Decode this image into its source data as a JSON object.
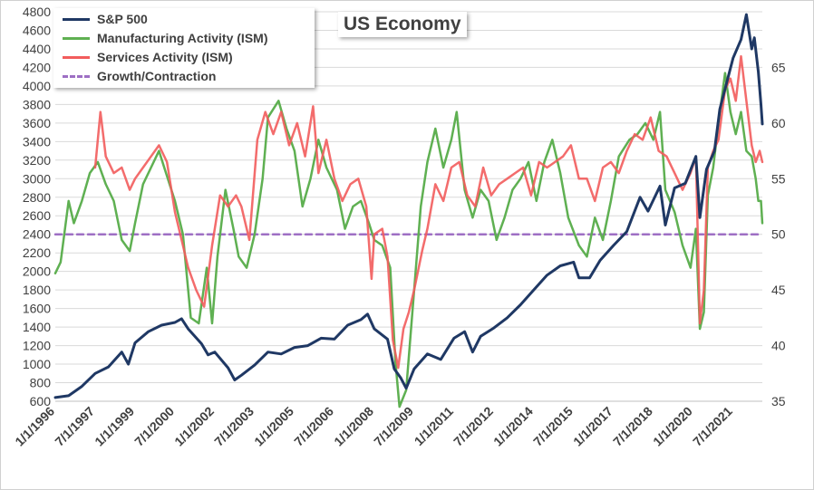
{
  "chart_data": {
    "type": "line",
    "title": "US Economy",
    "xlabel": "",
    "ylabel": "",
    "y_left_range": [
      600,
      4800
    ],
    "y_left_ticks": [
      600,
      800,
      1000,
      1200,
      1400,
      1600,
      1800,
      2000,
      2200,
      2400,
      2600,
      2800,
      3000,
      3200,
      3400,
      3600,
      3800,
      4000,
      4200,
      4400,
      4600,
      4800
    ],
    "y_right_range": [
      35,
      70
    ],
    "y_right_ticks": [
      35,
      40,
      45,
      50,
      55,
      60,
      65
    ],
    "x_range": [
      1996.0,
      2022.6
    ],
    "x_tick_labels": [
      {
        "label": "1/1/1996",
        "t": 1996.0
      },
      {
        "label": "7/1/1997",
        "t": 1997.5
      },
      {
        "label": "1/1/1999",
        "t": 1999.0
      },
      {
        "label": "7/1/2000",
        "t": 2000.5
      },
      {
        "label": "1/1/2002",
        "t": 2002.0
      },
      {
        "label": "7/1/2003",
        "t": 2003.5
      },
      {
        "label": "1/1/2005",
        "t": 2005.0
      },
      {
        "label": "7/1/2006",
        "t": 2006.5
      },
      {
        "label": "1/1/2008",
        "t": 2008.0
      },
      {
        "label": "7/1/2009",
        "t": 2009.5
      },
      {
        "label": "1/1/2011",
        "t": 2011.0
      },
      {
        "label": "7/1/2012",
        "t": 2012.5
      },
      {
        "label": "1/1/2014",
        "t": 2014.0
      },
      {
        "label": "7/1/2015",
        "t": 2015.5
      },
      {
        "label": "1/1/2017",
        "t": 2017.0
      },
      {
        "label": "7/1/2018",
        "t": 2018.5
      },
      {
        "label": "1/1/2020",
        "t": 2020.0
      },
      {
        "label": "7/1/2021",
        "t": 2021.5
      }
    ],
    "legend_position": "top-left",
    "grid": "horizontal",
    "series": [
      {
        "name": "S&P 500",
        "axis": "left",
        "color": "#1f3864",
        "points": [
          [
            1996.0,
            640
          ],
          [
            1996.5,
            660
          ],
          [
            1997.0,
            760
          ],
          [
            1997.5,
            900
          ],
          [
            1998.0,
            970
          ],
          [
            1998.5,
            1130
          ],
          [
            1998.75,
            1000
          ],
          [
            1999.0,
            1230
          ],
          [
            1999.5,
            1350
          ],
          [
            2000.0,
            1420
          ],
          [
            2000.5,
            1450
          ],
          [
            2000.75,
            1490
          ],
          [
            2001.0,
            1380
          ],
          [
            2001.5,
            1220
          ],
          [
            2001.75,
            1100
          ],
          [
            2002.0,
            1130
          ],
          [
            2002.5,
            960
          ],
          [
            2002.75,
            830
          ],
          [
            2003.0,
            880
          ],
          [
            2003.5,
            990
          ],
          [
            2004.0,
            1130
          ],
          [
            2004.5,
            1110
          ],
          [
            2005.0,
            1180
          ],
          [
            2005.5,
            1200
          ],
          [
            2006.0,
            1280
          ],
          [
            2006.5,
            1270
          ],
          [
            2007.0,
            1420
          ],
          [
            2007.5,
            1480
          ],
          [
            2007.75,
            1540
          ],
          [
            2008.0,
            1380
          ],
          [
            2008.5,
            1270
          ],
          [
            2008.75,
            950
          ],
          [
            2009.0,
            850
          ],
          [
            2009.2,
            740
          ],
          [
            2009.5,
            950
          ],
          [
            2010.0,
            1110
          ],
          [
            2010.5,
            1050
          ],
          [
            2011.0,
            1280
          ],
          [
            2011.4,
            1350
          ],
          [
            2011.7,
            1130
          ],
          [
            2012.0,
            1300
          ],
          [
            2012.5,
            1390
          ],
          [
            2013.0,
            1500
          ],
          [
            2013.5,
            1640
          ],
          [
            2014.0,
            1800
          ],
          [
            2014.5,
            1960
          ],
          [
            2015.0,
            2060
          ],
          [
            2015.5,
            2100
          ],
          [
            2015.7,
            1930
          ],
          [
            2016.1,
            1930
          ],
          [
            2016.5,
            2120
          ],
          [
            2017.0,
            2280
          ],
          [
            2017.5,
            2430
          ],
          [
            2018.0,
            2800
          ],
          [
            2018.3,
            2650
          ],
          [
            2018.75,
            2920
          ],
          [
            2018.95,
            2500
          ],
          [
            2019.3,
            2900
          ],
          [
            2019.7,
            2950
          ],
          [
            2020.1,
            3240
          ],
          [
            2020.25,
            2580
          ],
          [
            2020.5,
            3100
          ],
          [
            2020.8,
            3300
          ],
          [
            2021.0,
            3750
          ],
          [
            2021.5,
            4300
          ],
          [
            2021.8,
            4500
          ],
          [
            2022.0,
            4770
          ],
          [
            2022.2,
            4400
          ],
          [
            2022.3,
            4520
          ],
          [
            2022.45,
            4150
          ],
          [
            2022.55,
            3800
          ],
          [
            2022.6,
            3590
          ]
        ]
      },
      {
        "name": "Manufacturing Activity (ISM)",
        "axis": "right",
        "color": "#5fb052",
        "points": [
          [
            1996.0,
            46.5
          ],
          [
            1996.2,
            47.5
          ],
          [
            1996.5,
            53
          ],
          [
            1996.7,
            51
          ],
          [
            1997.0,
            53
          ],
          [
            1997.3,
            55.5
          ],
          [
            1997.6,
            56.5
          ],
          [
            1997.9,
            54.5
          ],
          [
            1998.2,
            53
          ],
          [
            1998.5,
            49.5
          ],
          [
            1998.8,
            48.5
          ],
          [
            1999.0,
            51
          ],
          [
            1999.3,
            54.5
          ],
          [
            1999.6,
            56
          ],
          [
            1999.9,
            57.5
          ],
          [
            2000.1,
            56
          ],
          [
            2000.5,
            53
          ],
          [
            2000.8,
            50
          ],
          [
            2001.1,
            42.5
          ],
          [
            2001.4,
            42
          ],
          [
            2001.7,
            47
          ],
          [
            2001.9,
            42
          ],
          [
            2002.1,
            48
          ],
          [
            2002.4,
            54
          ],
          [
            2002.7,
            50.5
          ],
          [
            2002.9,
            48
          ],
          [
            2003.2,
            47
          ],
          [
            2003.5,
            50
          ],
          [
            2003.8,
            55
          ],
          [
            2004.0,
            60.5
          ],
          [
            2004.4,
            62
          ],
          [
            2004.7,
            59.5
          ],
          [
            2005.0,
            57.5
          ],
          [
            2005.3,
            52.5
          ],
          [
            2005.6,
            55
          ],
          [
            2005.9,
            58.5
          ],
          [
            2006.2,
            56
          ],
          [
            2006.6,
            54
          ],
          [
            2006.9,
            50.5
          ],
          [
            2007.2,
            52.5
          ],
          [
            2007.5,
            53
          ],
          [
            2007.8,
            51
          ],
          [
            2008.0,
            49.5
          ],
          [
            2008.3,
            49
          ],
          [
            2008.6,
            47
          ],
          [
            2008.8,
            38.5
          ],
          [
            2008.95,
            34.5
          ],
          [
            2009.2,
            36
          ],
          [
            2009.5,
            45
          ],
          [
            2009.75,
            52.5
          ],
          [
            2010.0,
            56.5
          ],
          [
            2010.3,
            59.5
          ],
          [
            2010.6,
            56
          ],
          [
            2010.9,
            58.5
          ],
          [
            2011.1,
            61
          ],
          [
            2011.4,
            54
          ],
          [
            2011.7,
            51.5
          ],
          [
            2012.0,
            54
          ],
          [
            2012.3,
            53
          ],
          [
            2012.6,
            49.5
          ],
          [
            2012.9,
            51.5
          ],
          [
            2013.2,
            54
          ],
          [
            2013.5,
            55
          ],
          [
            2013.8,
            56.5
          ],
          [
            2014.1,
            53
          ],
          [
            2014.4,
            56.5
          ],
          [
            2014.7,
            58.5
          ],
          [
            2015.0,
            55.5
          ],
          [
            2015.3,
            51.5
          ],
          [
            2015.7,
            49
          ],
          [
            2016.0,
            48
          ],
          [
            2016.3,
            51.5
          ],
          [
            2016.6,
            49.5
          ],
          [
            2016.9,
            53
          ],
          [
            2017.2,
            57
          ],
          [
            2017.6,
            58.5
          ],
          [
            2017.9,
            59
          ],
          [
            2018.2,
            60
          ],
          [
            2018.5,
            58.5
          ],
          [
            2018.75,
            61
          ],
          [
            2018.95,
            54
          ],
          [
            2019.3,
            52
          ],
          [
            2019.6,
            49
          ],
          [
            2019.9,
            47
          ],
          [
            2020.1,
            50.5
          ],
          [
            2020.25,
            41.5
          ],
          [
            2020.4,
            43
          ],
          [
            2020.55,
            53.5
          ],
          [
            2020.75,
            56
          ],
          [
            2020.95,
            60
          ],
          [
            2021.2,
            64.5
          ],
          [
            2021.4,
            61
          ],
          [
            2021.6,
            59
          ],
          [
            2021.8,
            61
          ],
          [
            2022.0,
            57.5
          ],
          [
            2022.2,
            57
          ],
          [
            2022.35,
            55
          ],
          [
            2022.45,
            53
          ],
          [
            2022.55,
            53
          ],
          [
            2022.6,
            51
          ]
        ]
      },
      {
        "name": "Services Activity (ISM)",
        "axis": "right",
        "color": "#f25c5c",
        "points": [
          [
            1997.5,
            56
          ],
          [
            1997.7,
            61
          ],
          [
            1997.9,
            57
          ],
          [
            1998.2,
            55.5
          ],
          [
            1998.5,
            56
          ],
          [
            1998.8,
            54
          ],
          [
            1999.0,
            55
          ],
          [
            1999.3,
            56
          ],
          [
            1999.6,
            57
          ],
          [
            1999.9,
            58
          ],
          [
            2000.2,
            56.5
          ],
          [
            2000.5,
            52
          ],
          [
            2000.8,
            49
          ],
          [
            2001.0,
            47
          ],
          [
            2001.3,
            45
          ],
          [
            2001.6,
            43.5
          ],
          [
            2001.9,
            49
          ],
          [
            2002.2,
            53.5
          ],
          [
            2002.5,
            52.5
          ],
          [
            2002.8,
            53.5
          ],
          [
            2003.0,
            52.5
          ],
          [
            2003.3,
            49.5
          ],
          [
            2003.6,
            58.5
          ],
          [
            2003.9,
            61
          ],
          [
            2004.2,
            59
          ],
          [
            2004.5,
            61
          ],
          [
            2004.8,
            58
          ],
          [
            2005.1,
            60
          ],
          [
            2005.4,
            57
          ],
          [
            2005.7,
            61.5
          ],
          [
            2005.9,
            55.5
          ],
          [
            2006.2,
            58.5
          ],
          [
            2006.5,
            55
          ],
          [
            2006.8,
            53
          ],
          [
            2007.1,
            54.5
          ],
          [
            2007.4,
            55
          ],
          [
            2007.7,
            52.5
          ],
          [
            2007.9,
            46
          ],
          [
            2008.0,
            50
          ],
          [
            2008.3,
            50.5
          ],
          [
            2008.5,
            48
          ],
          [
            2008.7,
            40.5
          ],
          [
            2008.9,
            38
          ],
          [
            2009.1,
            41.5
          ],
          [
            2009.3,
            43
          ],
          [
            2009.5,
            45
          ],
          [
            2009.8,
            48.5
          ],
          [
            2010.0,
            50.5
          ],
          [
            2010.3,
            54.5
          ],
          [
            2010.6,
            53
          ],
          [
            2010.9,
            56
          ],
          [
            2011.2,
            56.5
          ],
          [
            2011.5,
            53.5
          ],
          [
            2011.8,
            52.5
          ],
          [
            2012.1,
            56
          ],
          [
            2012.4,
            53.5
          ],
          [
            2012.7,
            54.5
          ],
          [
            2013.0,
            55
          ],
          [
            2013.3,
            55.5
          ],
          [
            2013.6,
            56
          ],
          [
            2013.9,
            53.5
          ],
          [
            2014.2,
            56.5
          ],
          [
            2014.5,
            56
          ],
          [
            2014.8,
            56.5
          ],
          [
            2015.1,
            57
          ],
          [
            2015.4,
            58
          ],
          [
            2015.7,
            55
          ],
          [
            2016.0,
            55
          ],
          [
            2016.3,
            53
          ],
          [
            2016.6,
            56
          ],
          [
            2016.9,
            56.5
          ],
          [
            2017.2,
            55.5
          ],
          [
            2017.5,
            57.5
          ],
          [
            2017.8,
            59
          ],
          [
            2018.1,
            58.5
          ],
          [
            2018.4,
            60.5
          ],
          [
            2018.7,
            57.5
          ],
          [
            2019.0,
            57
          ],
          [
            2019.3,
            55.5
          ],
          [
            2019.6,
            54
          ],
          [
            2019.9,
            55.5
          ],
          [
            2020.1,
            57
          ],
          [
            2020.25,
            42
          ],
          [
            2020.4,
            45
          ],
          [
            2020.55,
            56
          ],
          [
            2020.75,
            57.5
          ],
          [
            2020.95,
            58.5
          ],
          [
            2021.2,
            63
          ],
          [
            2021.4,
            64
          ],
          [
            2021.6,
            62
          ],
          [
            2021.8,
            66
          ],
          [
            2022.0,
            62
          ],
          [
            2022.2,
            58
          ],
          [
            2022.35,
            56.5
          ],
          [
            2022.5,
            57.5
          ],
          [
            2022.6,
            56.5
          ]
        ]
      },
      {
        "name": "Growth/Contraction",
        "axis": "right",
        "color": "#9e6fc4",
        "dashed": true,
        "points": [
          [
            1996.0,
            50
          ],
          [
            2022.6,
            50
          ]
        ]
      }
    ]
  }
}
